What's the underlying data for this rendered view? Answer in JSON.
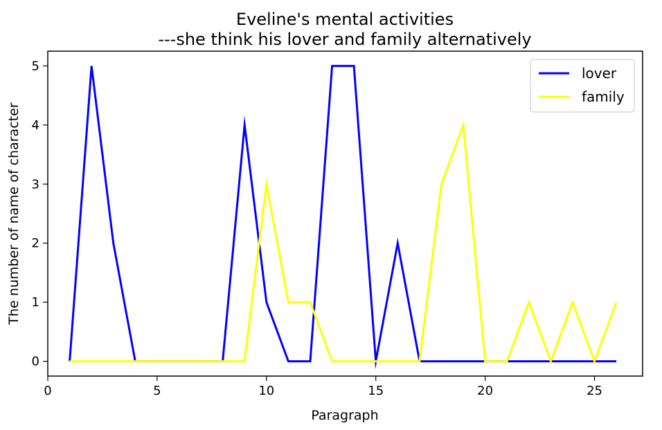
{
  "chart_data": {
    "type": "line",
    "title": "Eveline's mental activities",
    "subtitle": "---she think his lover and family alternatively",
    "xlabel": "Paragraph",
    "ylabel": "The number of name of character",
    "xlim": [
      0,
      27.2
    ],
    "ylim": [
      -0.25,
      5.25
    ],
    "xticks": [
      0,
      5,
      10,
      15,
      20,
      25
    ],
    "yticks": [
      0,
      1,
      2,
      3,
      4,
      5
    ],
    "x": [
      1,
      2,
      3,
      4,
      5,
      6,
      7,
      8,
      9,
      10,
      11,
      12,
      13,
      14,
      15,
      16,
      17,
      18,
      19,
      20,
      21,
      22,
      23,
      24,
      25,
      26
    ],
    "series": [
      {
        "name": "lover",
        "color": "#0000ff",
        "values": [
          0,
          5,
          2,
          0,
          0,
          0,
          0,
          0,
          4,
          1,
          0,
          0,
          5,
          5,
          0,
          2,
          0,
          0,
          0,
          0,
          0,
          0,
          0,
          0,
          0,
          0
        ]
      },
      {
        "name": "family",
        "color": "#ffff00",
        "values": [
          0,
          0,
          0,
          0,
          0,
          0,
          0,
          0,
          0,
          3,
          1,
          1,
          0,
          0,
          0,
          0,
          0,
          3,
          4,
          0,
          0,
          1,
          0,
          1,
          0,
          1
        ]
      }
    ],
    "legend": {
      "placement": "top-right"
    },
    "grid": false
  }
}
